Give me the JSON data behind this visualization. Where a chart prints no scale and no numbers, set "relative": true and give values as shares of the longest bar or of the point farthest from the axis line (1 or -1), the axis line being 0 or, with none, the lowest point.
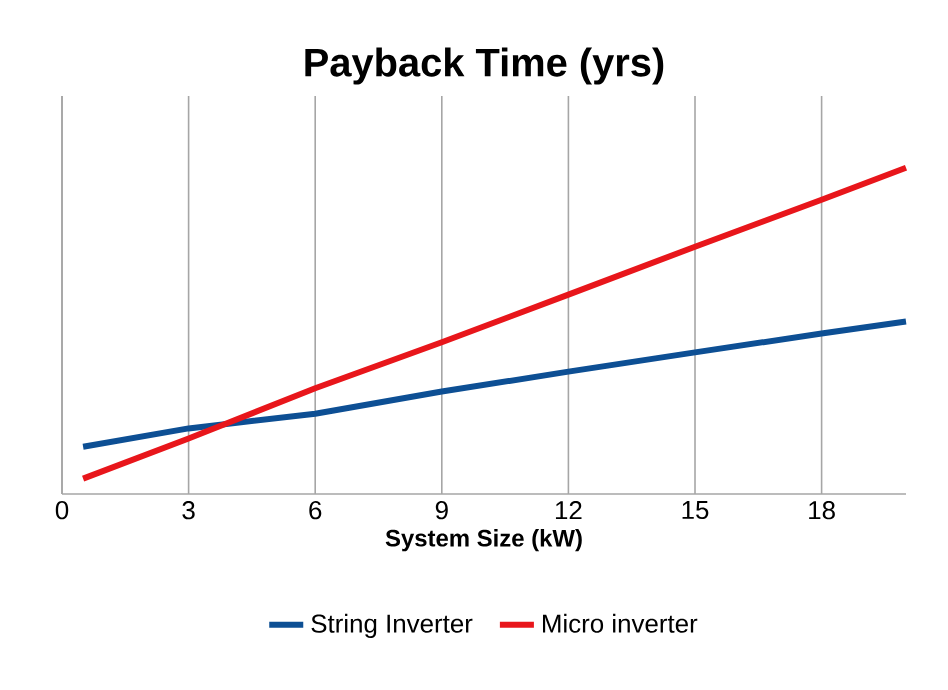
{
  "chart_data": {
    "type": "line",
    "title": "Payback Time (yrs)",
    "xlabel": "System Size (kW)",
    "x": [
      0.5,
      3,
      6,
      9,
      12,
      15,
      18,
      20
    ],
    "series": [
      {
        "name": "String Inverter",
        "color": "#0d4f94",
        "values": [
          0.145,
          0.201,
          0.246,
          0.314,
          0.375,
          0.434,
          0.492,
          0.529
        ]
      },
      {
        "name": "Micro inverter",
        "color": "#e8161b",
        "values": [
          0.047,
          0.17,
          0.324,
          0.465,
          0.611,
          0.758,
          0.902,
          1
        ]
      }
    ],
    "relative": true,
    "xlim": [
      0,
      20
    ],
    "xticks": [
      0,
      3,
      6,
      9,
      12,
      15,
      18
    ],
    "grid": "x",
    "legend": "bottom",
    "marker": "none",
    "line_style": "solid"
  }
}
